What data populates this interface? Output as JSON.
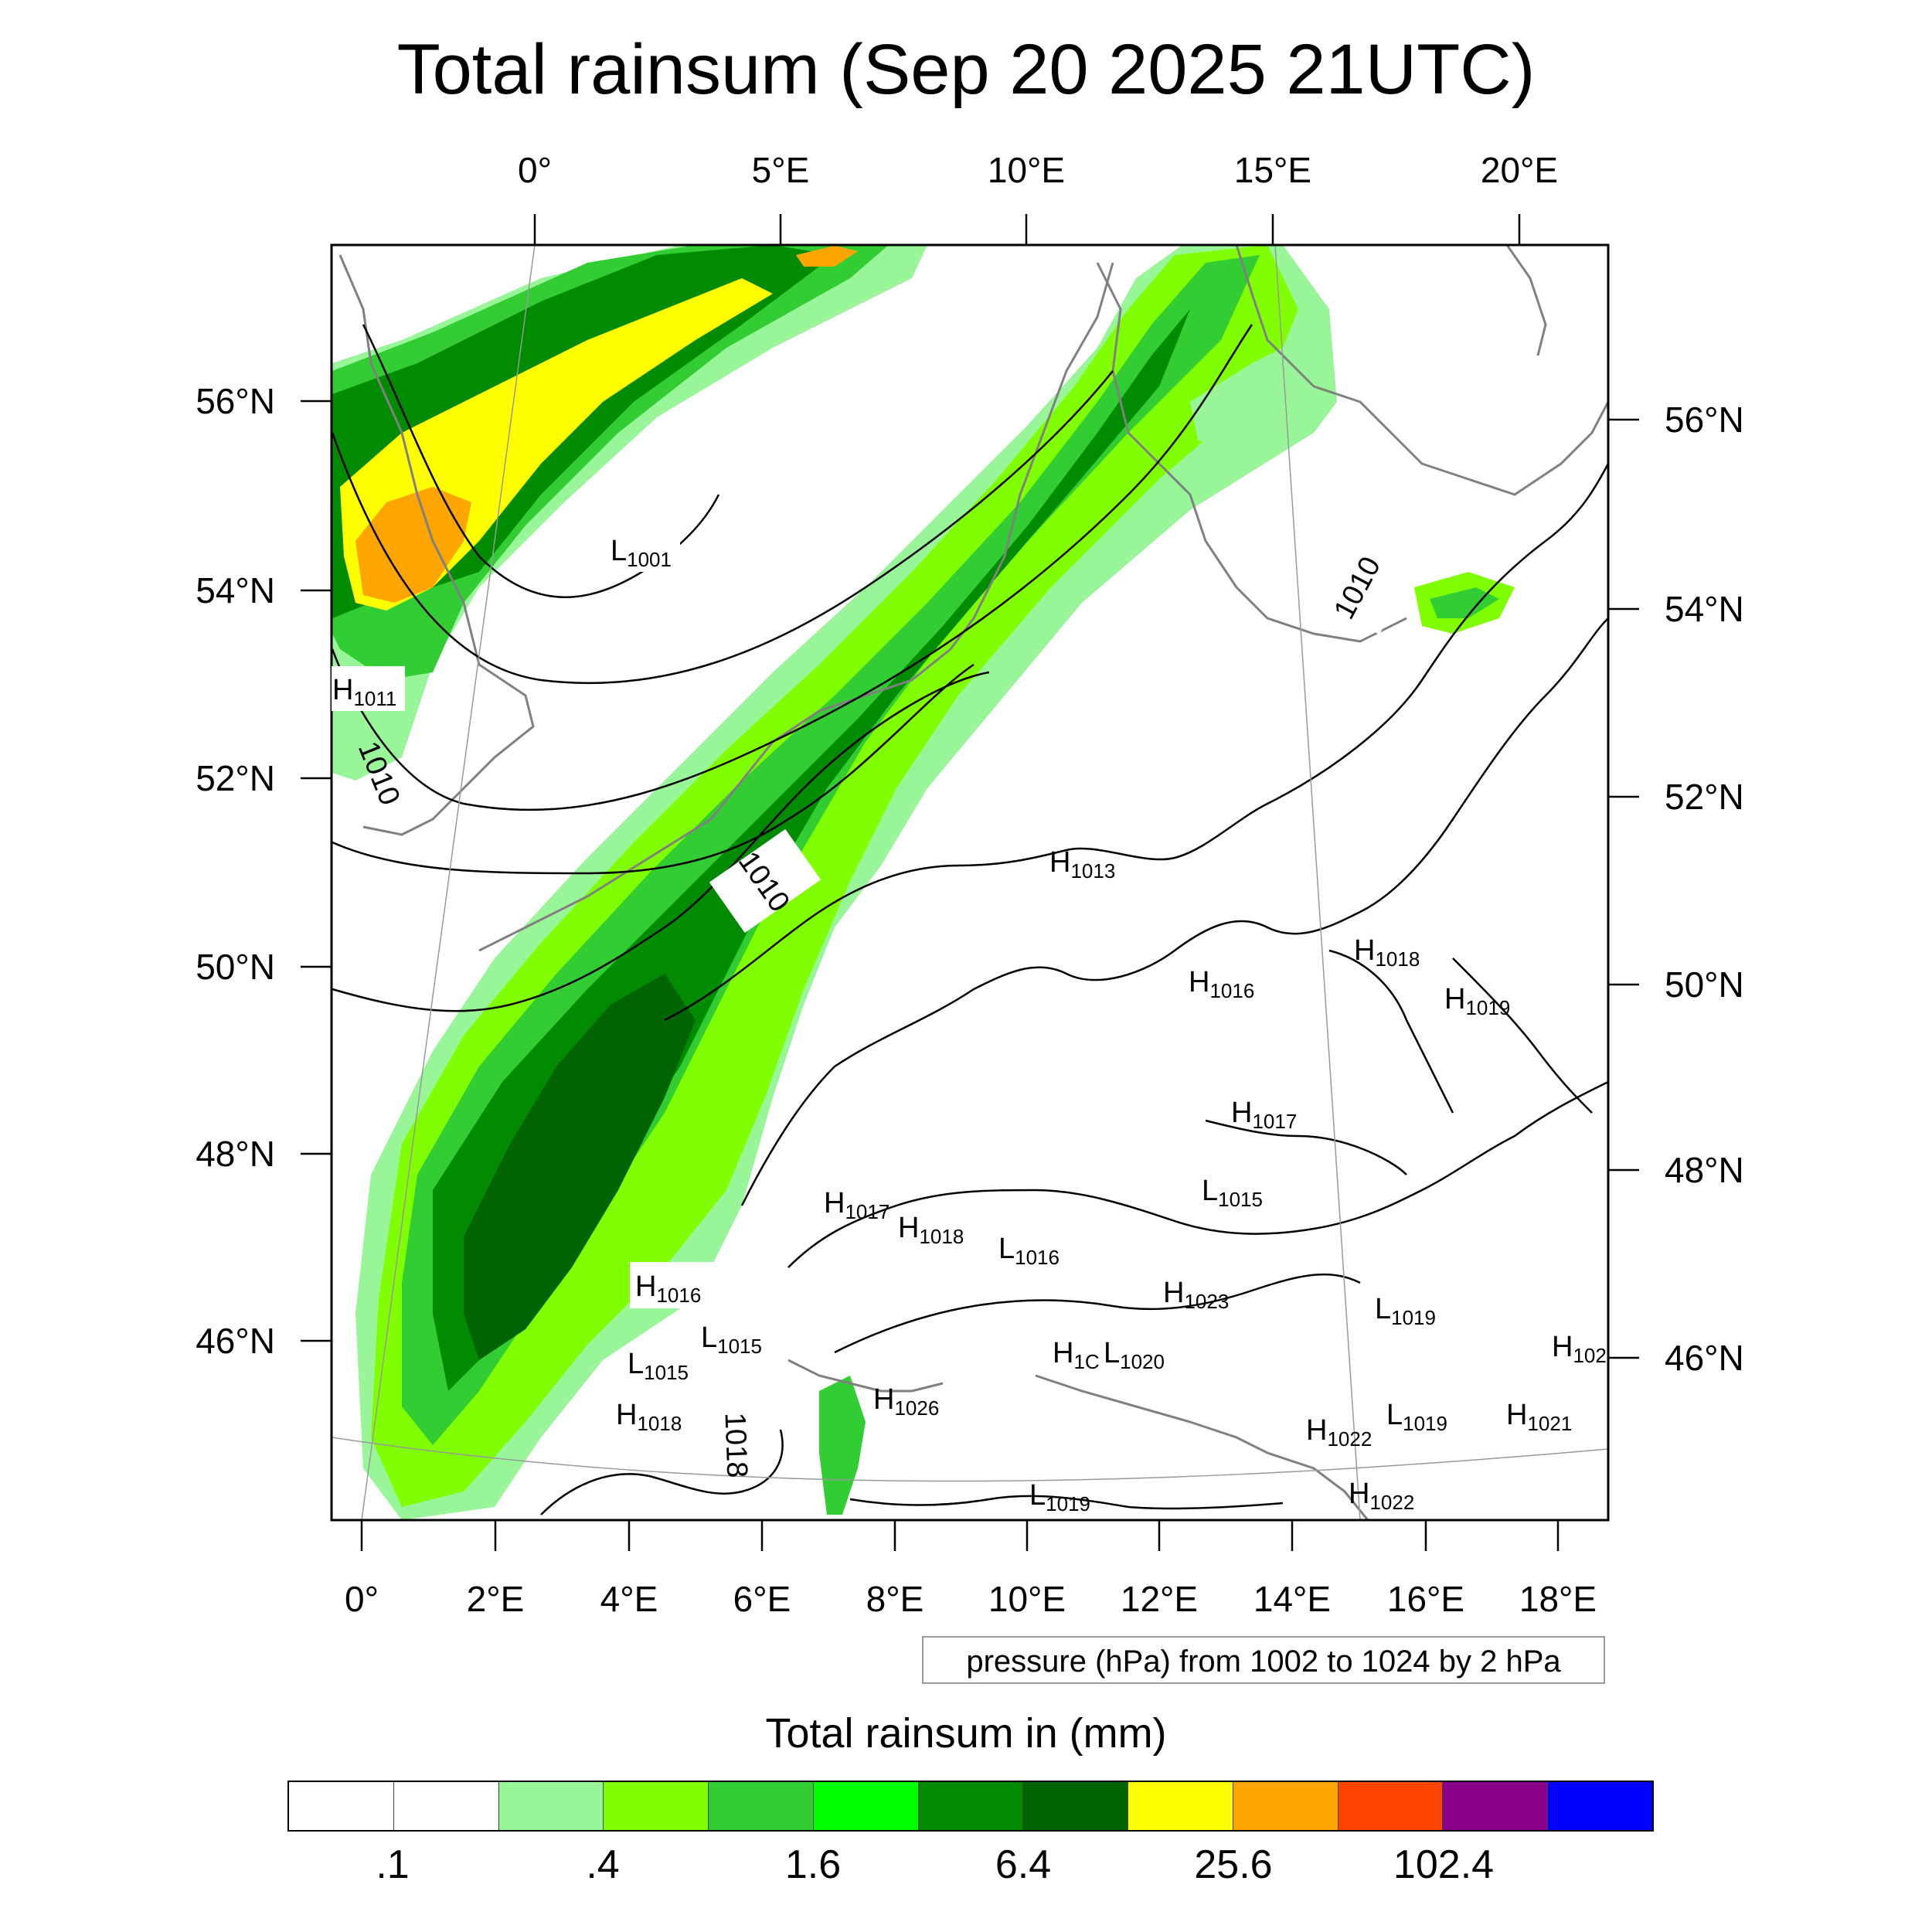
{
  "title": "Total rainsum (Sep 20 2025 21UTC)",
  "map": {
    "top_lon_labels": [
      "0°",
      "5°E",
      "10°E",
      "15°E",
      "20°E"
    ],
    "bottom_lon_labels": [
      "0°",
      "2°E",
      "4°E",
      "6°E",
      "8°E",
      "10°E",
      "12°E",
      "14°E",
      "16°E",
      "18°E"
    ],
    "left_lat_labels": [
      "56°N",
      "54°N",
      "52°N",
      "50°N",
      "48°N",
      "46°N"
    ],
    "right_lat_labels": [
      "56°N",
      "54°N",
      "52°N",
      "50°N",
      "48°N",
      "46°N"
    ],
    "isobar_labels": [
      "1010",
      "1010",
      "1010",
      "1018"
    ],
    "pressure_centers": [
      {
        "type": "L",
        "value": "1001"
      },
      {
        "type": "H",
        "value": "1011"
      },
      {
        "type": "H",
        "value": "1013"
      },
      {
        "type": "H",
        "value": "1018"
      },
      {
        "type": "H",
        "value": "1016"
      },
      {
        "type": "H",
        "value": "1019"
      },
      {
        "type": "H",
        "value": "1017"
      },
      {
        "type": "L",
        "value": "1015"
      },
      {
        "type": "H",
        "value": "1017"
      },
      {
        "type": "H",
        "value": "1018"
      },
      {
        "type": "L",
        "value": "1016"
      },
      {
        "type": "H",
        "value": "1016"
      },
      {
        "type": "H",
        "value": "1023"
      },
      {
        "type": "L",
        "value": "1019"
      },
      {
        "type": "L",
        "value": "1015"
      },
      {
        "type": "L",
        "value": "1015"
      },
      {
        "type": "H",
        "value": "1C"
      },
      {
        "type": "L",
        "value": "1020"
      },
      {
        "type": "H",
        "value": "102"
      },
      {
        "type": "H",
        "value": "1026"
      },
      {
        "type": "H",
        "value": "1018"
      },
      {
        "type": "H",
        "value": "1022"
      },
      {
        "type": "L",
        "value": "1019"
      },
      {
        "type": "H",
        "value": "1021"
      },
      {
        "type": "L",
        "value": "1019"
      },
      {
        "type": "H",
        "value": "1022"
      }
    ],
    "colors": {
      "rain_light": "#98f598",
      "rain_lime": "#80ff00",
      "rain_mid": "#32cd32",
      "rain_green": "#00ff00",
      "rain_dark": "#008b00",
      "rain_darker": "#006400",
      "rain_yellow": "#ffff00",
      "rain_orange": "#ffa500",
      "coast": "#808080",
      "isobar": "#000000"
    }
  },
  "note": "pressure (hPa) from 1002 to 1024 by 2 hPa",
  "colorbar": {
    "title": "Total rainsum in (mm)",
    "colors": [
      "#ffffff",
      "#ffffff",
      "#98f598",
      "#80ff00",
      "#32cd32",
      "#00ff00",
      "#008b00",
      "#006400",
      "#ffff00",
      "#ffa500",
      "#ff4500",
      "#8b008b",
      "#0000ff"
    ],
    "labels": [
      ".1",
      ".4",
      "1.6",
      "6.4",
      "25.6",
      "102.4"
    ]
  }
}
